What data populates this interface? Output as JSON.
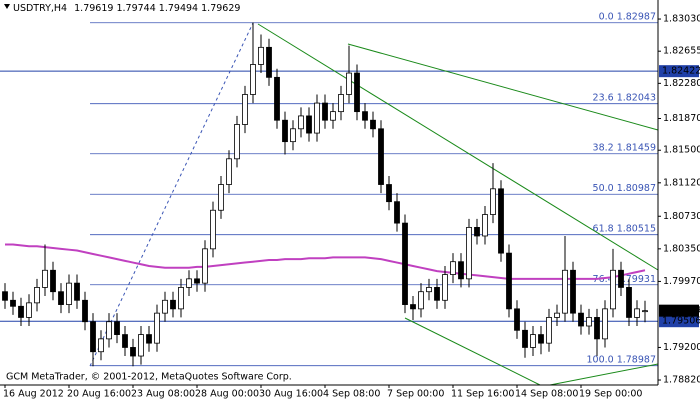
{
  "chart_data": {
    "type": "candlestick",
    "symbol": "USDTRY,H4",
    "watermark": "GCM MetaTrader, © 2001-2012, MetaQuotes Software Corp.",
    "categories": [
      "16 Aug 2012",
      null,
      null,
      null,
      null,
      null,
      null,
      null,
      "20 Aug 16:00",
      null,
      null,
      null,
      null,
      null,
      null,
      null,
      "23 Aug 08:00",
      null,
      null,
      null,
      null,
      null,
      null,
      null,
      "28 Aug 00:00",
      null,
      null,
      null,
      null,
      null,
      null,
      null,
      "30 Aug 16:00",
      null,
      null,
      null,
      null,
      null,
      null,
      null,
      "4 Sep 08:00",
      null,
      null,
      null,
      null,
      null,
      null,
      null,
      "7 Sep 00:00",
      null,
      null,
      null,
      null,
      null,
      null,
      null,
      "11 Sep 16:00",
      null,
      null,
      null,
      null,
      null,
      null,
      null,
      "14 Sep 08:00",
      null,
      null,
      null,
      null,
      null,
      null,
      null,
      "19 Sep 00:00",
      null,
      null,
      null,
      null,
      null,
      null,
      null,
      null
    ],
    "open": [
      1.7985,
      1.7975,
      1.7968,
      1.7955,
      1.7972,
      1.799,
      1.801,
      1.7985,
      1.797,
      1.7995,
      1.7975,
      1.795,
      1.7915,
      1.793,
      1.795,
      1.7935,
      1.792,
      1.791,
      1.7935,
      1.7925,
      1.796,
      1.7975,
      1.7965,
      1.799,
      1.8,
      1.7995,
      1.8035,
      1.808,
      1.811,
      1.814,
      1.818,
      1.8215,
      1.825,
      1.827,
      1.8235,
      1.8185,
      1.816,
      1.8175,
      1.819,
      1.817,
      1.8205,
      1.8185,
      1.8195,
      1.8215,
      1.824,
      1.8195,
      1.8185,
      1.8175,
      1.811,
      1.809,
      1.8065,
      1.797,
      1.7965,
      1.7985,
      1.799,
      1.7975,
      1.8005,
      1.802,
      1.8,
      1.806,
      1.805,
      1.8075,
      1.8105,
      1.803,
      1.7965,
      1.794,
      1.792,
      1.7935,
      1.7925,
      1.7955,
      1.796,
      1.801,
      1.796,
      1.7945,
      1.7955,
      1.793,
      1.7965,
      1.801,
      1.799,
      1.7955,
      1.79619
    ],
    "high": [
      1.7995,
      1.7985,
      1.7978,
      1.7982,
      1.8,
      1.804,
      1.802,
      1.7995,
      1.8005,
      1.8005,
      1.7985,
      1.796,
      1.794,
      1.796,
      1.796,
      1.7945,
      1.793,
      1.7945,
      1.7945,
      1.797,
      1.7985,
      1.7985,
      1.8,
      1.801,
      1.801,
      1.8045,
      1.809,
      1.812,
      1.815,
      1.819,
      1.8225,
      1.8299,
      1.8285,
      1.828,
      1.8245,
      1.8195,
      1.8185,
      1.82,
      1.82,
      1.8215,
      1.8215,
      1.8205,
      1.8225,
      1.8272,
      1.825,
      1.8205,
      1.8195,
      1.8185,
      1.812,
      1.81,
      1.8075,
      1.798,
      1.7995,
      1.8,
      1.8,
      1.8015,
      1.803,
      1.803,
      1.807,
      1.807,
      1.8085,
      1.8135,
      1.8115,
      1.804,
      1.7975,
      1.795,
      1.7945,
      1.7945,
      1.7965,
      1.797,
      1.805,
      1.802,
      1.797,
      1.7965,
      1.7965,
      1.7975,
      1.8035,
      1.802,
      1.8,
      1.7975,
      1.79744
    ],
    "low": [
      1.7965,
      1.7958,
      1.7945,
      1.7945,
      1.7962,
      1.798,
      1.7975,
      1.796,
      1.796,
      1.7965,
      1.794,
      1.7898,
      1.7905,
      1.792,
      1.7925,
      1.791,
      1.7898,
      1.79,
      1.7915,
      1.7915,
      1.795,
      1.7955,
      1.7955,
      1.798,
      1.7985,
      1.7985,
      1.8025,
      1.807,
      1.81,
      1.813,
      1.817,
      1.8205,
      1.824,
      1.8225,
      1.8175,
      1.8145,
      1.815,
      1.8165,
      1.816,
      1.816,
      1.8175,
      1.8175,
      1.8185,
      1.8205,
      1.8185,
      1.8175,
      1.8165,
      1.81,
      1.808,
      1.8055,
      1.796,
      1.7952,
      1.7955,
      1.7975,
      1.7965,
      1.7965,
      1.7995,
      1.799,
      1.799,
      1.804,
      1.804,
      1.8065,
      1.802,
      1.7955,
      1.793,
      1.7908,
      1.791,
      1.7912,
      1.7915,
      1.7945,
      1.795,
      1.795,
      1.7935,
      1.7935,
      1.791,
      1.792,
      1.7955,
      1.798,
      1.7945,
      1.7945,
      1.79494
    ],
    "close": [
      1.7975,
      1.7968,
      1.7955,
      1.7972,
      1.799,
      1.801,
      1.7985,
      1.797,
      1.7995,
      1.7975,
      1.795,
      1.7915,
      1.793,
      1.795,
      1.7935,
      1.792,
      1.791,
      1.7935,
      1.7925,
      1.796,
      1.7975,
      1.7965,
      1.799,
      1.8,
      1.7995,
      1.8035,
      1.808,
      1.811,
      1.814,
      1.818,
      1.8215,
      1.825,
      1.827,
      1.8235,
      1.8185,
      1.816,
      1.8175,
      1.819,
      1.817,
      1.8205,
      1.8185,
      1.8195,
      1.8215,
      1.824,
      1.8195,
      1.8185,
      1.8175,
      1.811,
      1.809,
      1.8065,
      1.797,
      1.7965,
      1.7985,
      1.799,
      1.7975,
      1.8005,
      1.802,
      1.8,
      1.806,
      1.805,
      1.8075,
      1.8105,
      1.803,
      1.7965,
      1.794,
      1.792,
      1.7935,
      1.7925,
      1.7955,
      1.796,
      1.801,
      1.796,
      1.7945,
      1.7955,
      1.793,
      1.7965,
      1.801,
      1.799,
      1.7955,
      1.7965,
      1.79629
    ],
    "up_color": "#ffffff",
    "down_color": "#000000",
    "ma": {
      "color": "#c040c0",
      "values": [
        1.804,
        1.804,
        1.8039,
        1.8038,
        1.8038,
        1.8037,
        1.8036,
        1.8035,
        1.8034,
        1.8033,
        1.8031,
        1.8029,
        1.8027,
        1.8025,
        1.8023,
        1.8021,
        1.8019,
        1.8017,
        1.8015,
        1.8014,
        1.8013,
        1.8013,
        1.8013,
        1.8013,
        1.8014,
        1.8014,
        1.8015,
        1.8016,
        1.8017,
        1.8018,
        1.8019,
        1.802,
        1.8021,
        1.8022,
        1.8022,
        1.8023,
        1.8023,
        1.8023,
        1.8024,
        1.8024,
        1.8024,
        1.8025,
        1.8025,
        1.8025,
        1.8025,
        1.8025,
        1.8024,
        1.8023,
        1.8021,
        1.8019,
        1.8017,
        1.8015,
        1.8013,
        1.8011,
        1.8009,
        1.8008,
        1.8007,
        1.8006,
        1.8005,
        1.8004,
        1.8003,
        1.8002,
        1.8001,
        1.8,
        1.8,
        1.8,
        1.8,
        1.8,
        1.8,
        1.8,
        1.8,
        1.8,
        1.8,
        1.8,
        1.8,
        1.8001,
        1.8002,
        1.8004,
        1.8006,
        1.8008,
        1.801
      ]
    },
    "ylim": [
      1.78762,
      1.83252
    ],
    "yticks": [
      {
        "value": 1.8303,
        "label": "1.83030"
      },
      1.82655,
      {
        "value": 1.8228,
        "label": "1.82280"
      },
      {
        "value": 1.8187,
        "label": "1.81870"
      },
      {
        "value": 1.815,
        "label": "1.81500"
      },
      {
        "value": 1.8112,
        "label": "1.81120"
      },
      {
        "value": 1.8073,
        "label": "1.80730"
      },
      {
        "value": 1.8035,
        "label": "1.80350"
      },
      {
        "value": 1.7997,
        "label": "1.79970"
      },
      {
        "value": 1.792,
        "label": "1.79200"
      },
      {
        "value": 1.7882,
        "label": "1.78820"
      }
    ],
    "hlines": [
      {
        "value": 1.82422,
        "color": "#2040a8"
      },
      {
        "value": 1.79506,
        "color": "#2040a8"
      }
    ],
    "last_price_color": "#000000",
    "fibo": {
      "color": "#3a55b5",
      "levels": [
        {
          "level": "0.0",
          "price": 1.82987
        },
        {
          "level": "23.6",
          "price": 1.82043
        },
        {
          "level": "38.2",
          "price": 1.81459
        },
        {
          "level": "50.0",
          "price": 1.80987
        },
        {
          "level": "61.8",
          "price": 1.80515
        },
        {
          "level": "76.4",
          "price": 1.79931
        },
        {
          "level": "100.0",
          "price": 1.78987
        }
      ]
    }
  }
}
